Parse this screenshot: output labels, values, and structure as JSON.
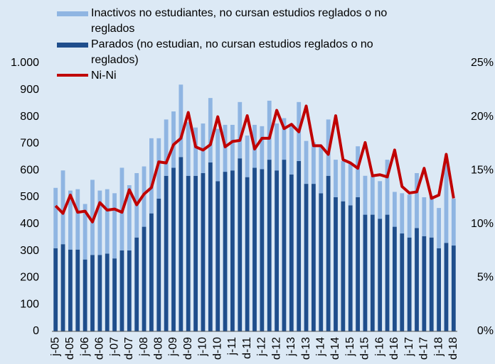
{
  "chart_data": {
    "type": "stacked-bar-line",
    "categories": [
      "j-05",
      null,
      "d-05",
      null,
      "j-06",
      null,
      "d-06",
      null,
      "j-07",
      null,
      "d-07",
      null,
      "j-08",
      null,
      "d-08",
      null,
      "j-09",
      null,
      "d-09",
      null,
      "j-10",
      null,
      "d-10",
      null,
      "j-11",
      null,
      "d-11",
      null,
      "j-12",
      null,
      "d-12",
      null,
      "j-13",
      null,
      "d-13",
      null,
      "j-14",
      null,
      "d-14",
      null,
      "j-15",
      null,
      "d-15",
      null,
      "j-16",
      null,
      "d-16",
      null,
      "j-17",
      null,
      "d-17",
      null,
      "j-18",
      null,
      "d-18"
    ],
    "series": [
      {
        "name": "Parados (no estudian, no cursan estudios reglados o no reglados)",
        "color": "#1f4e8c",
        "kind": "bar",
        "values": [
          310,
          325,
          305,
          305,
          268,
          285,
          285,
          290,
          272,
          302,
          302,
          350,
          390,
          440,
          495,
          580,
          610,
          650,
          580,
          580,
          590,
          630,
          560,
          595,
          600,
          645,
          575,
          610,
          605,
          640,
          600,
          640,
          585,
          635,
          550,
          550,
          515,
          580,
          500,
          485,
          470,
          500,
          435,
          435,
          420,
          435,
          390,
          365,
          350,
          385,
          355,
          350,
          310,
          330,
          320
        ]
      },
      {
        "name": "Inactivos no estudiantes, no cursan estudios reglados o no reglados",
        "color": "#8fb5e2",
        "kind": "bar",
        "values": [
          225,
          275,
          220,
          225,
          207,
          280,
          240,
          240,
          243,
          308,
          243,
          240,
          225,
          280,
          225,
          210,
          210,
          270,
          200,
          180,
          185,
          240,
          195,
          175,
          170,
          210,
          155,
          160,
          160,
          220,
          175,
          155,
          190,
          220,
          160,
          155,
          175,
          210,
          140,
          150,
          155,
          190,
          145,
          145,
          140,
          205,
          130,
          150,
          160,
          205,
          145,
          155,
          150,
          310,
          175
        ]
      },
      {
        "name": "Ni-Ni",
        "color": "#c00000",
        "kind": "line",
        "axis": "y2",
        "values": [
          11.7,
          11.0,
          12.7,
          11.1,
          11.2,
          10.2,
          12.0,
          11.3,
          11.4,
          11.1,
          13.2,
          11.8,
          12.8,
          13.4,
          15.8,
          15.7,
          17.4,
          18.0,
          20.4,
          17.2,
          16.9,
          17.4,
          20.0,
          17.2,
          17.7,
          17.8,
          20.1,
          17.0,
          18.0,
          18.0,
          20.6,
          18.9,
          19.3,
          18.6,
          21.0,
          17.3,
          17.3,
          16.5,
          20.1,
          16.0,
          15.7,
          15.2,
          17.6,
          14.5,
          14.6,
          14.4,
          16.9,
          13.5,
          12.9,
          13.0,
          15.2,
          12.4,
          12.7,
          16.5,
          12.4
        ]
      }
    ],
    "ylim": [
      0,
      1000
    ],
    "yticks": [
      0,
      100,
      200,
      300,
      400,
      500,
      600,
      700,
      800,
      900,
      {
        "value": 1000,
        "label": "1.000"
      }
    ],
    "y2lim": [
      0,
      25
    ],
    "y2ticks": [
      {
        "value": 0,
        "label": "0%"
      },
      {
        "value": 5,
        "label": "5%"
      },
      {
        "value": 10,
        "label": "10%"
      },
      {
        "value": 15,
        "label": "15%"
      },
      {
        "value": 20,
        "label": "20%"
      },
      {
        "value": 25,
        "label": "25%"
      }
    ],
    "legend_order": [
      1,
      0,
      2
    ]
  }
}
